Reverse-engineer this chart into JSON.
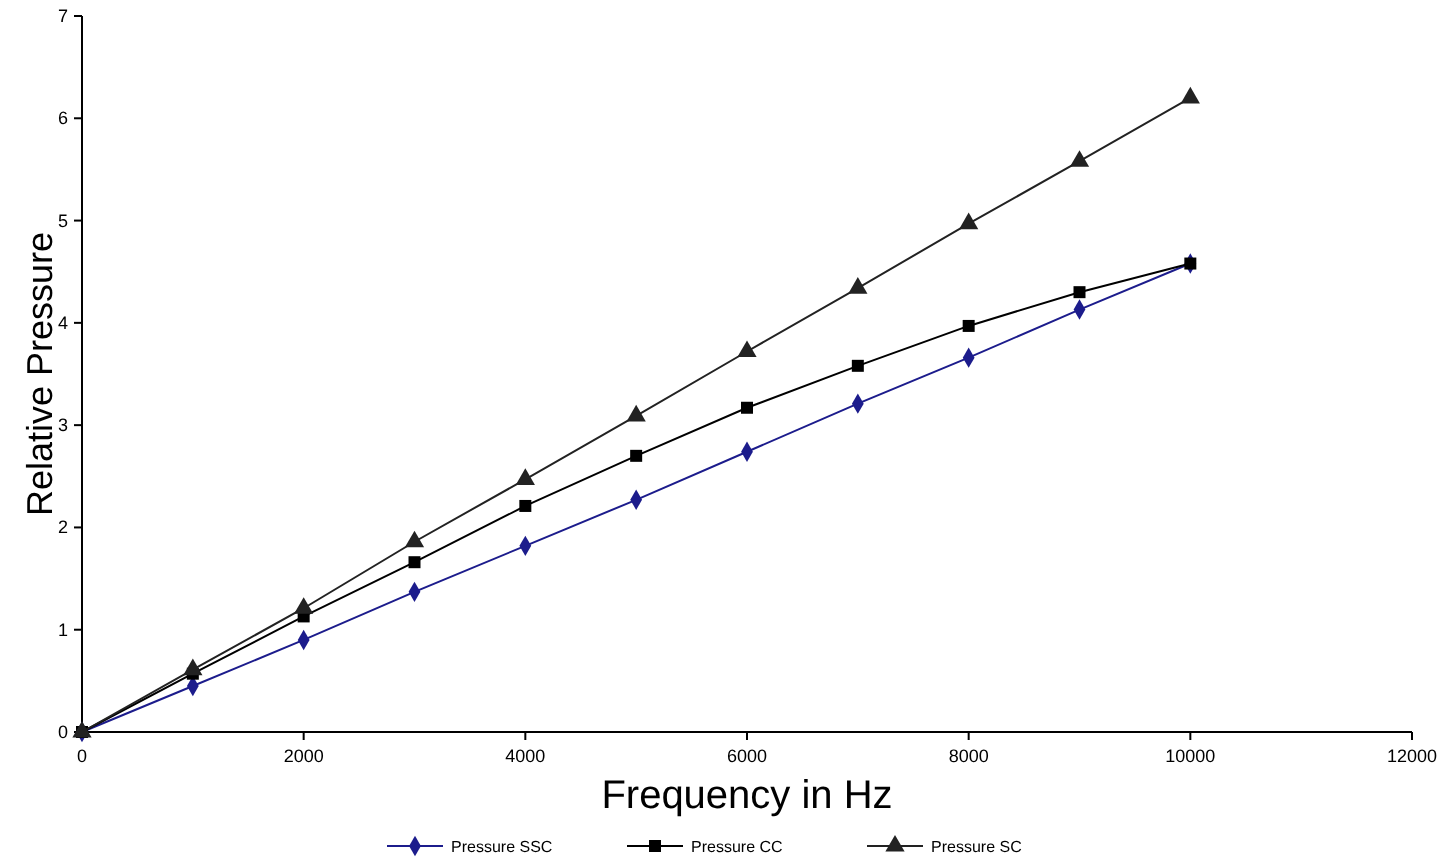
{
  "chart_data": {
    "type": "line",
    "xlabel": "Frequency in Hz",
    "ylabel": "Relative Pressure",
    "x": [
      0,
      1000,
      2000,
      3000,
      4000,
      5000,
      6000,
      7000,
      8000,
      9000,
      10000
    ],
    "series": [
      {
        "name": "Pressure SSC",
        "color": "#1c1c8c",
        "marker": "diamond",
        "values": [
          0,
          0.45,
          0.9,
          1.37,
          1.82,
          2.27,
          2.74,
          3.21,
          3.66,
          4.13,
          4.58
        ]
      },
      {
        "name": "Pressure CC",
        "color": "#000000",
        "marker": "square",
        "values": [
          0,
          0.57,
          1.13,
          1.66,
          2.21,
          2.7,
          3.17,
          3.58,
          3.97,
          4.3,
          4.58
        ]
      },
      {
        "name": "Pressure SC",
        "color": "#222222",
        "marker": "triangle",
        "values": [
          0,
          0.61,
          1.21,
          1.86,
          2.47,
          3.09,
          3.72,
          4.34,
          4.97,
          5.58,
          6.2
        ]
      }
    ],
    "xlim": [
      0,
      12000
    ],
    "xticks": [
      0,
      2000,
      4000,
      6000,
      8000,
      10000,
      12000
    ],
    "ylim": [
      0,
      7
    ],
    "yticks": [
      0,
      1,
      2,
      3,
      4,
      5,
      6,
      7
    ],
    "grid": false,
    "legend": "bottom",
    "line_style": "solid"
  }
}
